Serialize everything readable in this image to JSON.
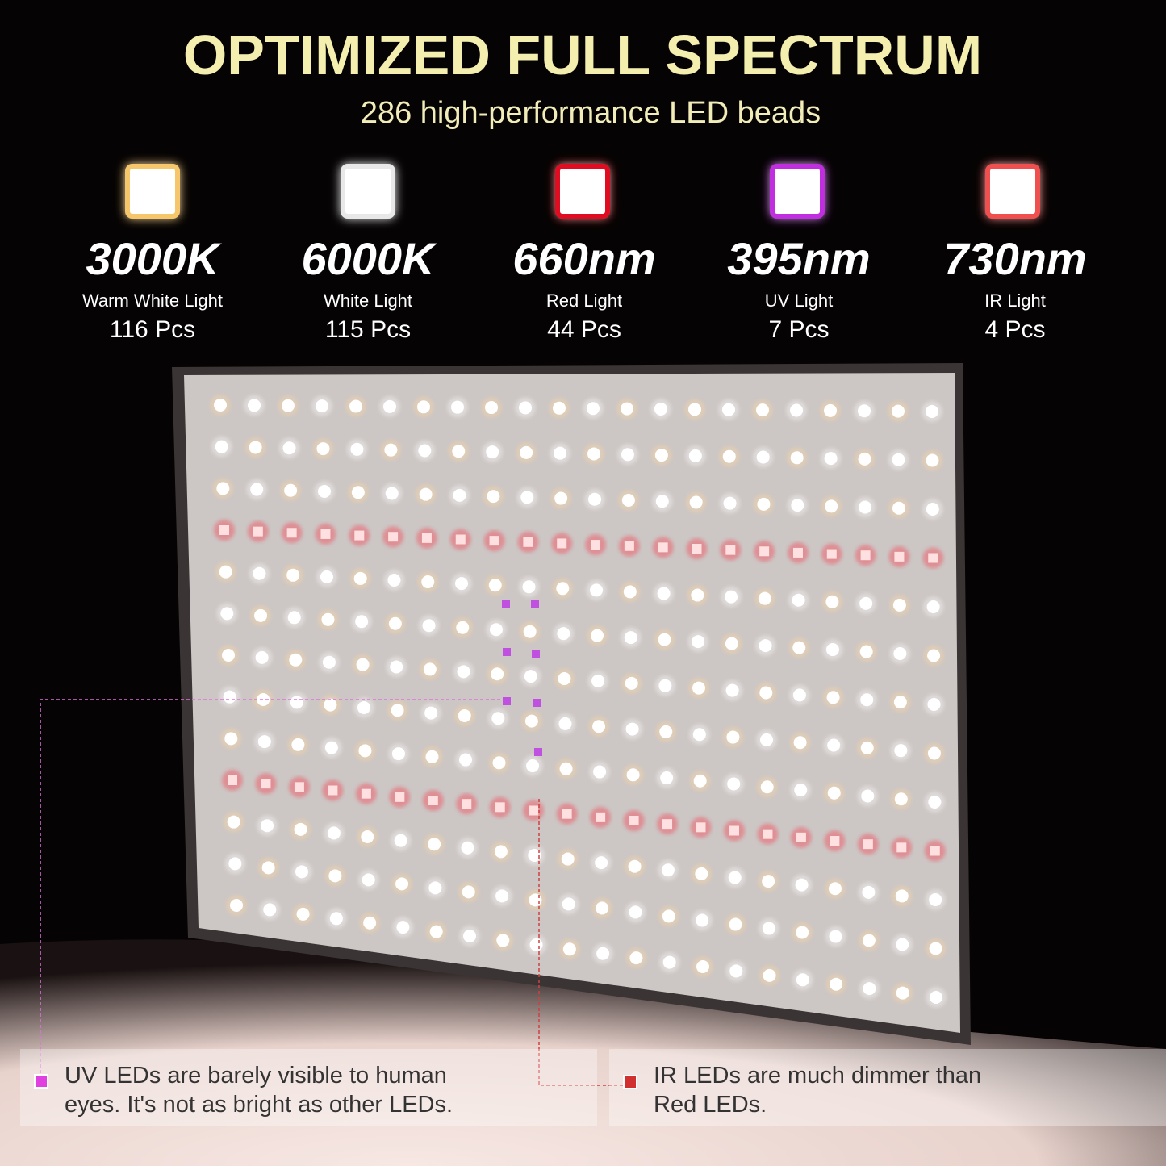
{
  "title": "OPTIMIZED FULL SPECTRUM",
  "subtitle": "286 high-performance LED beads",
  "specs": [
    {
      "value": "3000K",
      "label": "Warm White Light",
      "count": "116 Pcs"
    },
    {
      "value": "6000K",
      "label": "White Light",
      "count": "115 Pcs"
    },
    {
      "value": "660nm",
      "label": "Red Light",
      "count": "44 Pcs"
    },
    {
      "value": "395nm",
      "label": "UV Light",
      "count": "7 Pcs"
    },
    {
      "value": "730nm",
      "label": "IR Light",
      "count": "4 Pcs"
    }
  ],
  "notes": [
    {
      "lines": [
        "UV LEDs are barely visible to human",
        "eyes. It's not as bright as other LEDs."
      ]
    },
    {
      "lines": [
        "IR LEDs are much dimmer than",
        "Red LEDs."
      ]
    }
  ]
}
